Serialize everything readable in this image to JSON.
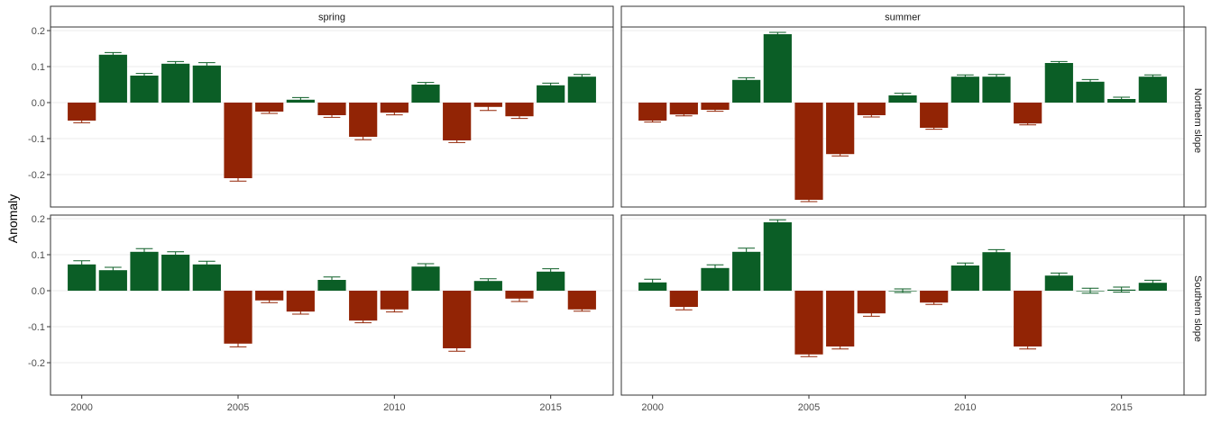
{
  "colors": {
    "positive": "#0b5e26",
    "negative": "#922405",
    "panel_border": "#333333",
    "grid": "#ebebeb",
    "strip_fill": "#ffffff"
  },
  "chart_data": {
    "type": "bar",
    "facet_cols": [
      "spring",
      "summer"
    ],
    "facet_rows": [
      "Northern slope",
      "Southern slope"
    ],
    "ylabel": "Anomaly",
    "xlabel": "",
    "x_ticks": [
      2000,
      2005,
      2010,
      2015
    ],
    "y_ticks": [
      -0.2,
      -0.1,
      0.0,
      0.1,
      0.2
    ],
    "y_tick_labels": [
      "-0.2",
      "-0.1",
      "0.0",
      "0.1",
      "0.2"
    ],
    "x_tick_labels": [
      "2000",
      "2005",
      "2010",
      "2015"
    ],
    "xlim": [
      1999,
      2017
    ],
    "ylim": [
      -0.29,
      0.21
    ],
    "years": [
      2000,
      2001,
      2002,
      2003,
      2004,
      2005,
      2006,
      2007,
      2008,
      2009,
      2010,
      2011,
      2012,
      2013,
      2014,
      2015,
      2016
    ],
    "panels": [
      {
        "season": "spring",
        "slope": "Northern slope",
        "values": [
          -0.05,
          0.133,
          0.075,
          0.108,
          0.103,
          -0.21,
          -0.025,
          0.008,
          -0.035,
          -0.095,
          -0.028,
          0.05,
          -0.105,
          -0.012,
          -0.038,
          0.048,
          0.072
        ],
        "errors": [
          0.006,
          0.006,
          0.006,
          0.006,
          0.008,
          0.008,
          0.005,
          0.006,
          0.006,
          0.008,
          0.006,
          0.006,
          0.006,
          0.01,
          0.006,
          0.006,
          0.006
        ]
      },
      {
        "season": "summer",
        "slope": "Northern slope",
        "values": [
          -0.05,
          -0.033,
          -0.02,
          0.063,
          0.19,
          -0.27,
          -0.143,
          -0.035,
          0.02,
          -0.07,
          0.072,
          0.072,
          -0.058,
          0.11,
          0.058,
          0.01,
          0.072
        ],
        "errors": [
          0.004,
          0.004,
          0.004,
          0.006,
          0.005,
          0.005,
          0.005,
          0.005,
          0.006,
          0.004,
          0.005,
          0.006,
          0.004,
          0.004,
          0.006,
          0.005,
          0.005
        ]
      },
      {
        "season": "spring",
        "slope": "Southern slope",
        "values": [
          0.073,
          0.057,
          0.108,
          0.1,
          0.073,
          -0.147,
          -0.027,
          -0.058,
          0.03,
          -0.083,
          -0.052,
          0.067,
          -0.16,
          0.027,
          -0.022,
          0.053,
          -0.052
        ],
        "errors": [
          0.01,
          0.008,
          0.009,
          0.008,
          0.009,
          0.009,
          0.006,
          0.007,
          0.008,
          0.006,
          0.007,
          0.008,
          0.008,
          0.006,
          0.008,
          0.008,
          0.005
        ]
      },
      {
        "season": "summer",
        "slope": "Southern slope",
        "values": [
          0.023,
          -0.045,
          0.063,
          0.108,
          0.19,
          -0.177,
          -0.155,
          -0.063,
          0.0,
          -0.033,
          0.07,
          0.107,
          -0.155,
          0.042,
          0.0,
          0.003,
          0.022
        ],
        "errors": [
          0.009,
          0.008,
          0.009,
          0.01,
          0.007,
          0.006,
          0.007,
          0.008,
          0.005,
          0.005,
          0.007,
          0.007,
          0.007,
          0.007,
          0.007,
          0.007,
          0.007
        ]
      }
    ],
    "grid": true,
    "legend": "none"
  }
}
